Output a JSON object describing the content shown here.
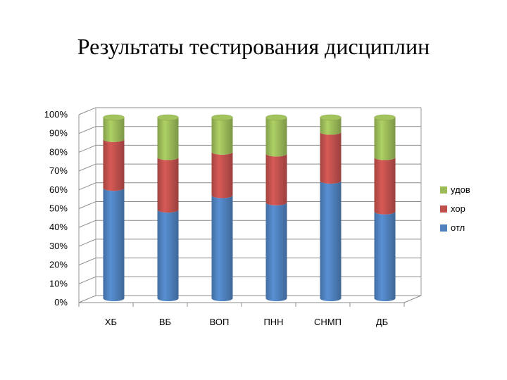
{
  "page": {
    "title": "Результаты тестирования дисциплин"
  },
  "chart_data": {
    "type": "bar",
    "stacked": true,
    "categories": [
      "ХБ",
      "ВБ",
      "ВОП",
      "ПНН",
      "СНМП",
      "ДБ"
    ],
    "series": [
      {
        "name": "отл",
        "color": "#4F81BD",
        "values": [
          61,
          49,
          57,
          53,
          65,
          48
        ]
      },
      {
        "name": "хор",
        "color": "#C0504D",
        "values": [
          27,
          29,
          24,
          27,
          27,
          30
        ]
      },
      {
        "name": "удов",
        "color": "#9BBB59",
        "values": [
          12,
          22,
          19,
          20,
          8,
          22
        ]
      }
    ],
    "yticks": [
      "0%",
      "10%",
      "20%",
      "30%",
      "40%",
      "50%",
      "60%",
      "70%",
      "80%",
      "90%",
      "100%"
    ],
    "ylim": [
      0,
      100
    ],
    "grid": true,
    "legend_position": "right"
  }
}
